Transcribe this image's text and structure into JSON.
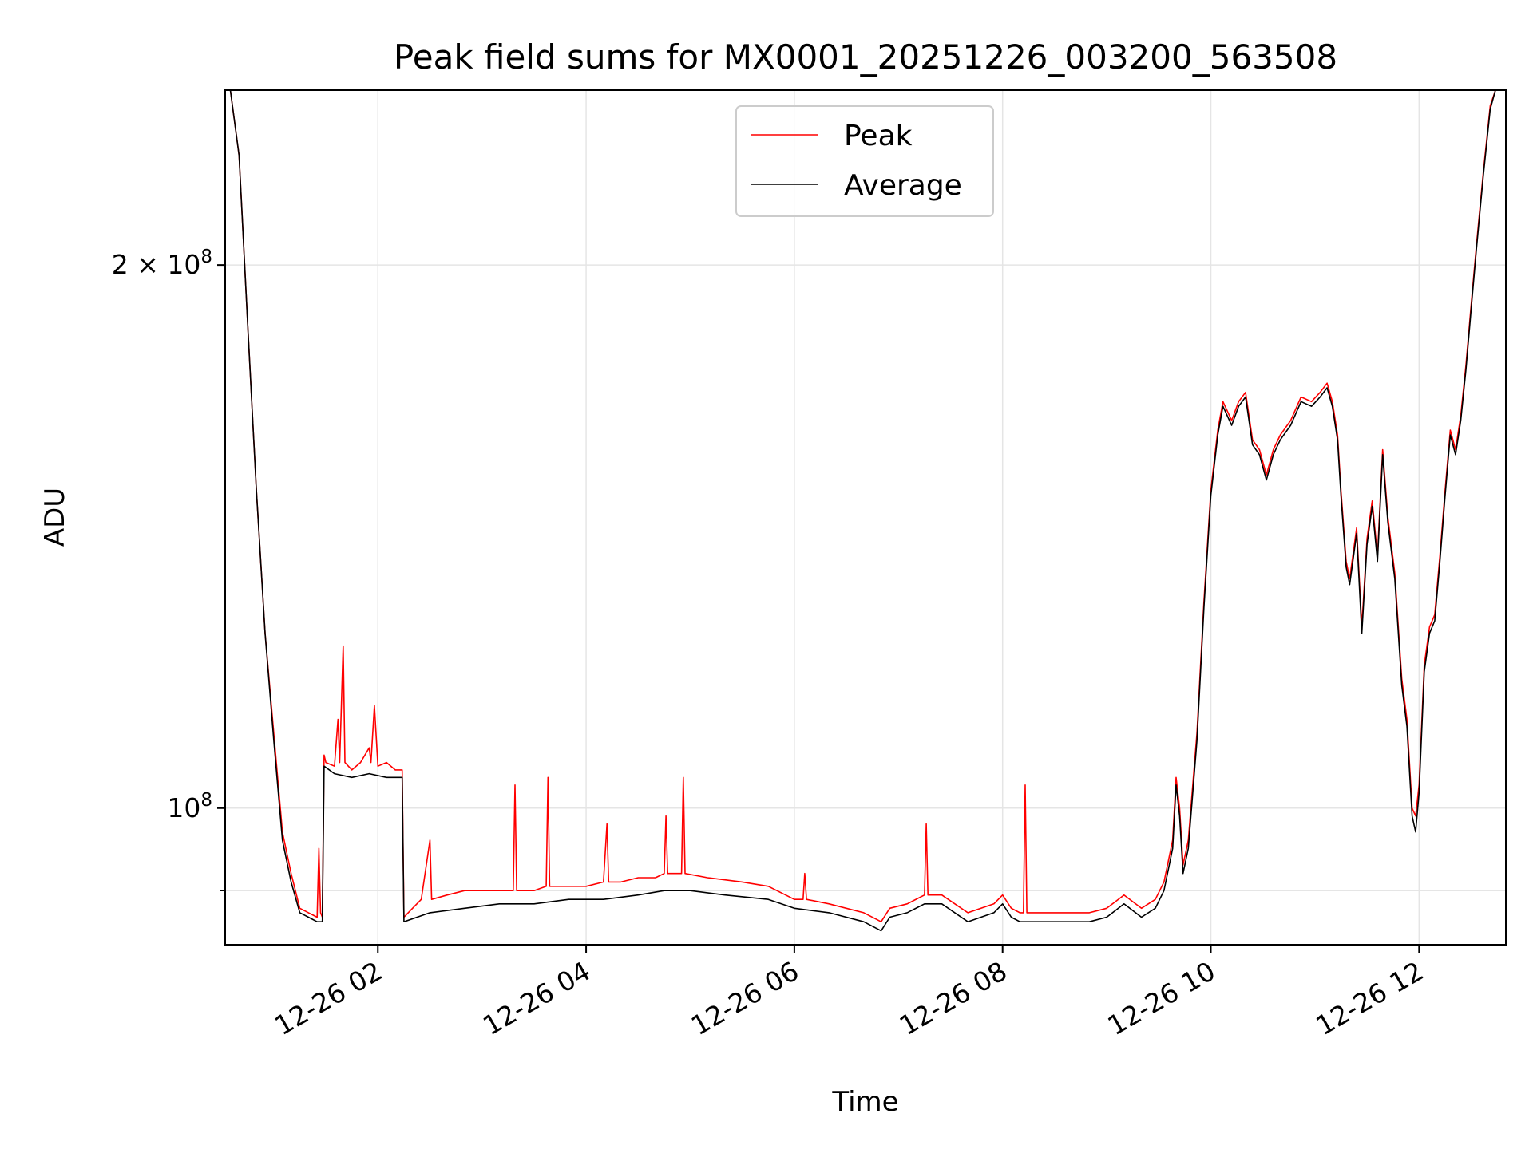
{
  "chart_data": {
    "type": "line",
    "title": "Peak field sums for MX0001_20251226_003200_563508",
    "xlabel": "Time",
    "ylabel": "ADU",
    "yscale": "log",
    "xlim": [
      "2025-12-26 00:32",
      "2025-12-26 12:50"
    ],
    "ylim": [
      84000000,
      250000000
    ],
    "grid": true,
    "legend_position": "upper center",
    "x_ticks": [
      "12-26 02",
      "12-26 04",
      "12-26 06",
      "12-26 08",
      "12-26 10",
      "12-26 12"
    ],
    "y_ticks": [
      {
        "value": 200000000,
        "label_base": "2 × 10",
        "label_exp": "8"
      },
      {
        "value": 100000000,
        "label_base": "10",
        "label_exp": "8"
      }
    ],
    "series": [
      {
        "name": "Peak",
        "color": "#ff0000",
        "points": [
          [
            "00:32",
            250000000
          ],
          [
            "00:35",
            250000000
          ],
          [
            "00:40",
            230000000
          ],
          [
            "00:45",
            185000000
          ],
          [
            "00:50",
            150000000
          ],
          [
            "00:55",
            125000000
          ],
          [
            "01:00",
            110000000
          ],
          [
            "01:05",
            97000000
          ],
          [
            "01:10",
            92000000
          ],
          [
            "01:15",
            88000000
          ],
          [
            "01:20",
            87500000
          ],
          [
            "01:25",
            87000000
          ],
          [
            "01:26",
            95000000
          ],
          [
            "01:27",
            87500000
          ],
          [
            "01:28",
            87000000
          ],
          [
            "01:29",
            107000000
          ],
          [
            "01:30",
            106000000
          ],
          [
            "01:35",
            105500000
          ],
          [
            "01:37",
            112000000
          ],
          [
            "01:38",
            106000000
          ],
          [
            "01:40",
            123000000
          ],
          [
            "01:41",
            106000000
          ],
          [
            "01:45",
            105000000
          ],
          [
            "01:50",
            106000000
          ],
          [
            "01:55",
            108000000
          ],
          [
            "01:56",
            106000000
          ],
          [
            "01:58",
            114000000
          ],
          [
            "02:00",
            105500000
          ],
          [
            "02:05",
            106000000
          ],
          [
            "02:10",
            105000000
          ],
          [
            "02:14",
            105000000
          ],
          [
            "02:15",
            87000000
          ],
          [
            "02:20",
            88000000
          ],
          [
            "02:25",
            89000000
          ],
          [
            "02:30",
            96000000
          ],
          [
            "02:31",
            89000000
          ],
          [
            "02:40",
            89500000
          ],
          [
            "02:50",
            90000000
          ],
          [
            "03:00",
            90000000
          ],
          [
            "03:10",
            90000000
          ],
          [
            "03:18",
            90000000
          ],
          [
            "03:19",
            103000000
          ],
          [
            "03:20",
            90000000
          ],
          [
            "03:30",
            90000000
          ],
          [
            "03:37",
            90500000
          ],
          [
            "03:38",
            104000000
          ],
          [
            "03:39",
            90500000
          ],
          [
            "03:50",
            90500000
          ],
          [
            "04:00",
            90500000
          ],
          [
            "04:10",
            91000000
          ],
          [
            "04:12",
            98000000
          ],
          [
            "04:13",
            91000000
          ],
          [
            "04:20",
            91000000
          ],
          [
            "04:30",
            91500000
          ],
          [
            "04:40",
            91500000
          ],
          [
            "04:45",
            92000000
          ],
          [
            "04:46",
            99000000
          ],
          [
            "04:47",
            92000000
          ],
          [
            "04:55",
            92000000
          ],
          [
            "04:56",
            104000000
          ],
          [
            "04:57",
            92000000
          ],
          [
            "05:10",
            91500000
          ],
          [
            "05:30",
            91000000
          ],
          [
            "05:45",
            90500000
          ],
          [
            "06:00",
            89000000
          ],
          [
            "06:05",
            89000000
          ],
          [
            "06:06",
            92000000
          ],
          [
            "06:07",
            89000000
          ],
          [
            "06:20",
            88500000
          ],
          [
            "06:40",
            87500000
          ],
          [
            "06:50",
            86500000
          ],
          [
            "06:55",
            88000000
          ],
          [
            "07:05",
            88500000
          ],
          [
            "07:15",
            89500000
          ],
          [
            "07:16",
            98000000
          ],
          [
            "07:17",
            89500000
          ],
          [
            "07:25",
            89500000
          ],
          [
            "07:40",
            87500000
          ],
          [
            "07:55",
            88500000
          ],
          [
            "08:00",
            89500000
          ],
          [
            "08:05",
            88000000
          ],
          [
            "08:10",
            87500000
          ],
          [
            "08:12",
            87500000
          ],
          [
            "08:13",
            103000000
          ],
          [
            "08:14",
            87500000
          ],
          [
            "08:30",
            87500000
          ],
          [
            "08:50",
            87500000
          ],
          [
            "09:00",
            88000000
          ],
          [
            "09:10",
            89500000
          ],
          [
            "09:20",
            88000000
          ],
          [
            "09:28",
            89000000
          ],
          [
            "09:33",
            91000000
          ],
          [
            "09:38",
            96000000
          ],
          [
            "09:40",
            104000000
          ],
          [
            "09:42",
            100000000
          ],
          [
            "09:44",
            93000000
          ],
          [
            "09:47",
            96000000
          ],
          [
            "09:52",
            110000000
          ],
          [
            "09:56",
            130000000
          ],
          [
            "10:00",
            150000000
          ],
          [
            "10:04",
            162000000
          ],
          [
            "10:07",
            168000000
          ],
          [
            "10:12",
            164000000
          ],
          [
            "10:16",
            168000000
          ],
          [
            "10:20",
            170000000
          ],
          [
            "10:24",
            160000000
          ],
          [
            "10:28",
            158000000
          ],
          [
            "10:32",
            153000000
          ],
          [
            "10:36",
            158000000
          ],
          [
            "10:40",
            161000000
          ],
          [
            "10:46",
            164000000
          ],
          [
            "10:52",
            169000000
          ],
          [
            "10:58",
            168000000
          ],
          [
            "11:03",
            170000000
          ],
          [
            "11:07",
            172000000
          ],
          [
            "11:10",
            168000000
          ],
          [
            "11:13",
            161000000
          ],
          [
            "11:15",
            150000000
          ],
          [
            "11:18",
            137000000
          ],
          [
            "11:20",
            134000000
          ],
          [
            "11:24",
            143000000
          ],
          [
            "11:27",
            126000000
          ],
          [
            "11:30",
            141000000
          ],
          [
            "11:33",
            148000000
          ],
          [
            "11:36",
            138000000
          ],
          [
            "11:39",
            158000000
          ],
          [
            "11:42",
            145000000
          ],
          [
            "11:46",
            135000000
          ],
          [
            "11:50",
            118000000
          ],
          [
            "11:53",
            112000000
          ],
          [
            "11:56",
            100000000
          ],
          [
            "11:58",
            99000000
          ],
          [
            "12:00",
            103000000
          ],
          [
            "12:03",
            120000000
          ],
          [
            "12:06",
            126000000
          ],
          [
            "12:09",
            128000000
          ],
          [
            "12:12",
            138000000
          ],
          [
            "12:15",
            150000000
          ],
          [
            "12:18",
            162000000
          ],
          [
            "12:21",
            158000000
          ],
          [
            "12:24",
            165000000
          ],
          [
            "12:27",
            176000000
          ],
          [
            "12:30",
            190000000
          ],
          [
            "12:33",
            205000000
          ],
          [
            "12:37",
            225000000
          ],
          [
            "12:41",
            245000000
          ],
          [
            "12:44",
            250000000
          ],
          [
            "12:50",
            250000000
          ]
        ]
      },
      {
        "name": "Average",
        "color": "#000000",
        "points": [
          [
            "00:32",
            250000000
          ],
          [
            "00:35",
            250000000
          ],
          [
            "00:40",
            230000000
          ],
          [
            "00:45",
            185000000
          ],
          [
            "00:50",
            150000000
          ],
          [
            "00:55",
            125000000
          ],
          [
            "01:00",
            109000000
          ],
          [
            "01:05",
            96000000
          ],
          [
            "01:10",
            91000000
          ],
          [
            "01:15",
            87500000
          ],
          [
            "01:20",
            87000000
          ],
          [
            "01:25",
            86500000
          ],
          [
            "01:28",
            86500000
          ],
          [
            "01:29",
            105500000
          ],
          [
            "01:35",
            104500000
          ],
          [
            "01:45",
            104000000
          ],
          [
            "01:55",
            104500000
          ],
          [
            "02:05",
            104000000
          ],
          [
            "02:14",
            104000000
          ],
          [
            "02:15",
            86500000
          ],
          [
            "02:30",
            87500000
          ],
          [
            "02:50",
            88000000
          ],
          [
            "03:10",
            88500000
          ],
          [
            "03:30",
            88500000
          ],
          [
            "03:50",
            89000000
          ],
          [
            "04:10",
            89000000
          ],
          [
            "04:30",
            89500000
          ],
          [
            "04:45",
            90000000
          ],
          [
            "05:00",
            90000000
          ],
          [
            "05:20",
            89500000
          ],
          [
            "05:45",
            89000000
          ],
          [
            "06:00",
            88000000
          ],
          [
            "06:20",
            87500000
          ],
          [
            "06:40",
            86500000
          ],
          [
            "06:50",
            85500000
          ],
          [
            "06:55",
            87000000
          ],
          [
            "07:05",
            87500000
          ],
          [
            "07:15",
            88500000
          ],
          [
            "07:25",
            88500000
          ],
          [
            "07:40",
            86500000
          ],
          [
            "07:55",
            87500000
          ],
          [
            "08:00",
            88500000
          ],
          [
            "08:05",
            87000000
          ],
          [
            "08:10",
            86500000
          ],
          [
            "08:30",
            86500000
          ],
          [
            "08:50",
            86500000
          ],
          [
            "09:00",
            87000000
          ],
          [
            "09:10",
            88500000
          ],
          [
            "09:20",
            87000000
          ],
          [
            "09:28",
            88000000
          ],
          [
            "09:33",
            90000000
          ],
          [
            "09:38",
            95000000
          ],
          [
            "09:40",
            103000000
          ],
          [
            "09:42",
            99000000
          ],
          [
            "09:44",
            92000000
          ],
          [
            "09:47",
            95000000
          ],
          [
            "09:52",
            109000000
          ],
          [
            "09:56",
            129000000
          ],
          [
            "10:00",
            149000000
          ],
          [
            "10:04",
            161000000
          ],
          [
            "10:07",
            167000000
          ],
          [
            "10:12",
            163000000
          ],
          [
            "10:16",
            167000000
          ],
          [
            "10:20",
            169000000
          ],
          [
            "10:24",
            159000000
          ],
          [
            "10:28",
            157000000
          ],
          [
            "10:32",
            152000000
          ],
          [
            "10:36",
            157000000
          ],
          [
            "10:40",
            160000000
          ],
          [
            "10:46",
            163000000
          ],
          [
            "10:52",
            168000000
          ],
          [
            "10:58",
            167000000
          ],
          [
            "11:03",
            169000000
          ],
          [
            "11:07",
            171000000
          ],
          [
            "11:10",
            167000000
          ],
          [
            "11:13",
            160000000
          ],
          [
            "11:15",
            149000000
          ],
          [
            "11:18",
            136000000
          ],
          [
            "11:20",
            133000000
          ],
          [
            "11:24",
            142000000
          ],
          [
            "11:27",
            125000000
          ],
          [
            "11:30",
            140000000
          ],
          [
            "11:33",
            147000000
          ],
          [
            "11:36",
            137000000
          ],
          [
            "11:39",
            157000000
          ],
          [
            "11:42",
            144000000
          ],
          [
            "11:46",
            134000000
          ],
          [
            "11:50",
            117000000
          ],
          [
            "11:53",
            111000000
          ],
          [
            "11:56",
            99000000
          ],
          [
            "11:58",
            97000000
          ],
          [
            "12:00",
            102000000
          ],
          [
            "12:03",
            119000000
          ],
          [
            "12:06",
            125000000
          ],
          [
            "12:09",
            127000000
          ],
          [
            "12:12",
            137000000
          ],
          [
            "12:15",
            149000000
          ],
          [
            "12:18",
            161000000
          ],
          [
            "12:21",
            157000000
          ],
          [
            "12:24",
            164000000
          ],
          [
            "12:27",
            175000000
          ],
          [
            "12:30",
            189000000
          ],
          [
            "12:33",
            204000000
          ],
          [
            "12:37",
            224000000
          ],
          [
            "12:41",
            244000000
          ],
          [
            "12:44",
            250000000
          ],
          [
            "12:50",
            250000000
          ]
        ]
      }
    ]
  }
}
